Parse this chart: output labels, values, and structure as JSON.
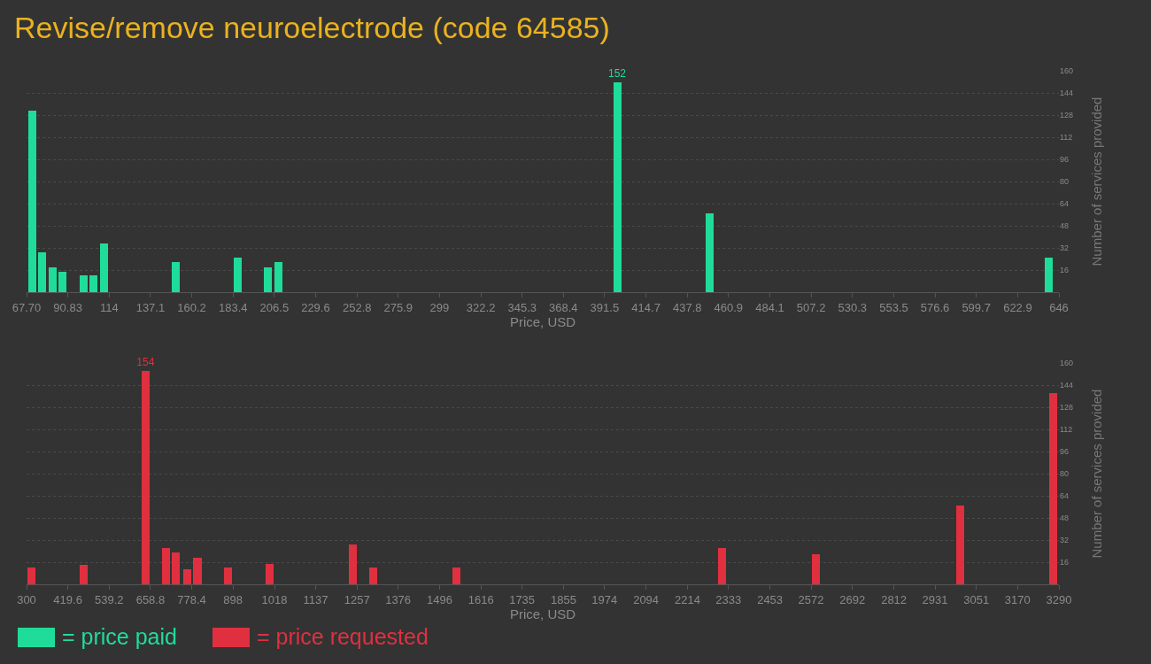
{
  "chart_data": [
    {
      "type": "bar",
      "title": "Revise/remove neuroelectrode (code 64585)",
      "xlabel": "Price, USD",
      "ylabel": "Number of services provided",
      "x": [
        70.8,
        76.5,
        82.2,
        87.9,
        99.5,
        105.2,
        111.0,
        151.1,
        185.8,
        202.9,
        208.6,
        398.6,
        450.5,
        640.4
      ],
      "series": [
        {
          "name": "= price paid",
          "color": "#20dc9a",
          "values": [
            131,
            29,
            18,
            15,
            12,
            12,
            35,
            22,
            25,
            18,
            22,
            152,
            57,
            25
          ],
          "value_labels": [
            null,
            null,
            null,
            null,
            null,
            null,
            null,
            null,
            null,
            null,
            null,
            "152",
            null,
            null
          ]
        }
      ],
      "xlim": [
        67.7,
        646
      ],
      "xticks": [
        {
          "value": 67.7,
          "label": "67.70"
        },
        90.83,
        114,
        137.1,
        160.2,
        183.4,
        206.5,
        229.6,
        252.8,
        275.9,
        299,
        322.2,
        345.3,
        368.4,
        391.5,
        414.7,
        437.8,
        460.9,
        484.1,
        507.2,
        530.3,
        553.5,
        576.6,
        599.7,
        622.9,
        646
      ],
      "ylim": [
        0,
        160
      ],
      "yticks": [
        16,
        32,
        48,
        64,
        80,
        96,
        112,
        128,
        144,
        160
      ],
      "grid": "y",
      "legend": "bottom left"
    },
    {
      "type": "bar",
      "xlabel": "Price, USD",
      "ylabel": "Number of services provided",
      "x": [
        315,
        465,
        645,
        704,
        733,
        765,
        795,
        884,
        1004,
        1244,
        1303,
        1544,
        2315,
        2585,
        3005,
        3274
      ],
      "series": [
        {
          "name": "= price requested",
          "color": "#e0303f",
          "values": [
            12,
            14,
            154,
            26,
            23,
            11,
            19,
            12,
            15,
            29,
            12,
            12,
            26,
            22,
            57,
            138
          ],
          "value_labels": [
            null,
            null,
            "154",
            null,
            null,
            null,
            null,
            null,
            null,
            null,
            null,
            null,
            null,
            null,
            null,
            null
          ]
        }
      ],
      "xlim": [
        300,
        3290
      ],
      "xticks": [
        300,
        419.6,
        539.2,
        658.8,
        778.4,
        898,
        1018,
        1137,
        1257,
        1376,
        1496,
        1616,
        1735,
        1855,
        1974,
        2094,
        2214,
        2333,
        2453,
        2572,
        2692,
        2812,
        2931,
        3051,
        3170,
        3290
      ],
      "ylim": [
        0,
        160
      ],
      "yticks": [
        16,
        32,
        48,
        64,
        80,
        96,
        112,
        128,
        144,
        160
      ],
      "grid": "y",
      "legend": "bottom left"
    }
  ]
}
